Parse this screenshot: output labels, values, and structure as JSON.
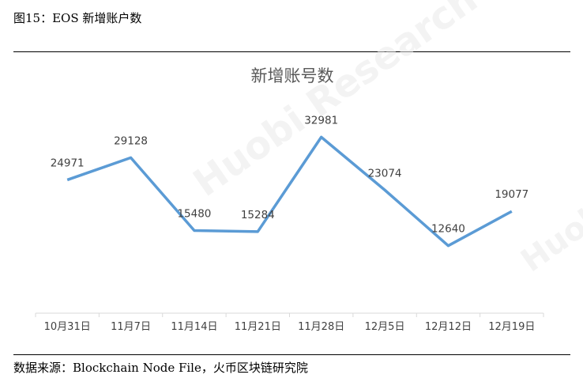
{
  "figure": {
    "caption": "图15：EOS 新增账户数",
    "source": "数据来源：Blockchain Node File，火币区块链研究院"
  },
  "watermark": {
    "main": "Huobi Research",
    "side": "Huob"
  },
  "colors": {
    "line": "#5b9bd5",
    "axis": "#d9d9d9",
    "title": "#595959",
    "labels": "#404040"
  },
  "chart_data": {
    "type": "line",
    "title": "新增账号数",
    "xlabel": "",
    "ylabel": "",
    "categories": [
      "10月31日",
      "11月7日",
      "11月14日",
      "11月21日",
      "11月28日",
      "12月5日",
      "12月12日",
      "12月19日"
    ],
    "series": [
      {
        "values": [
          24971,
          29128,
          15480,
          15284,
          32981,
          23074,
          12640,
          19077
        ]
      }
    ],
    "ylim": [
      0,
      40000
    ],
    "grid": false,
    "legend": "none",
    "data_labels": true
  }
}
